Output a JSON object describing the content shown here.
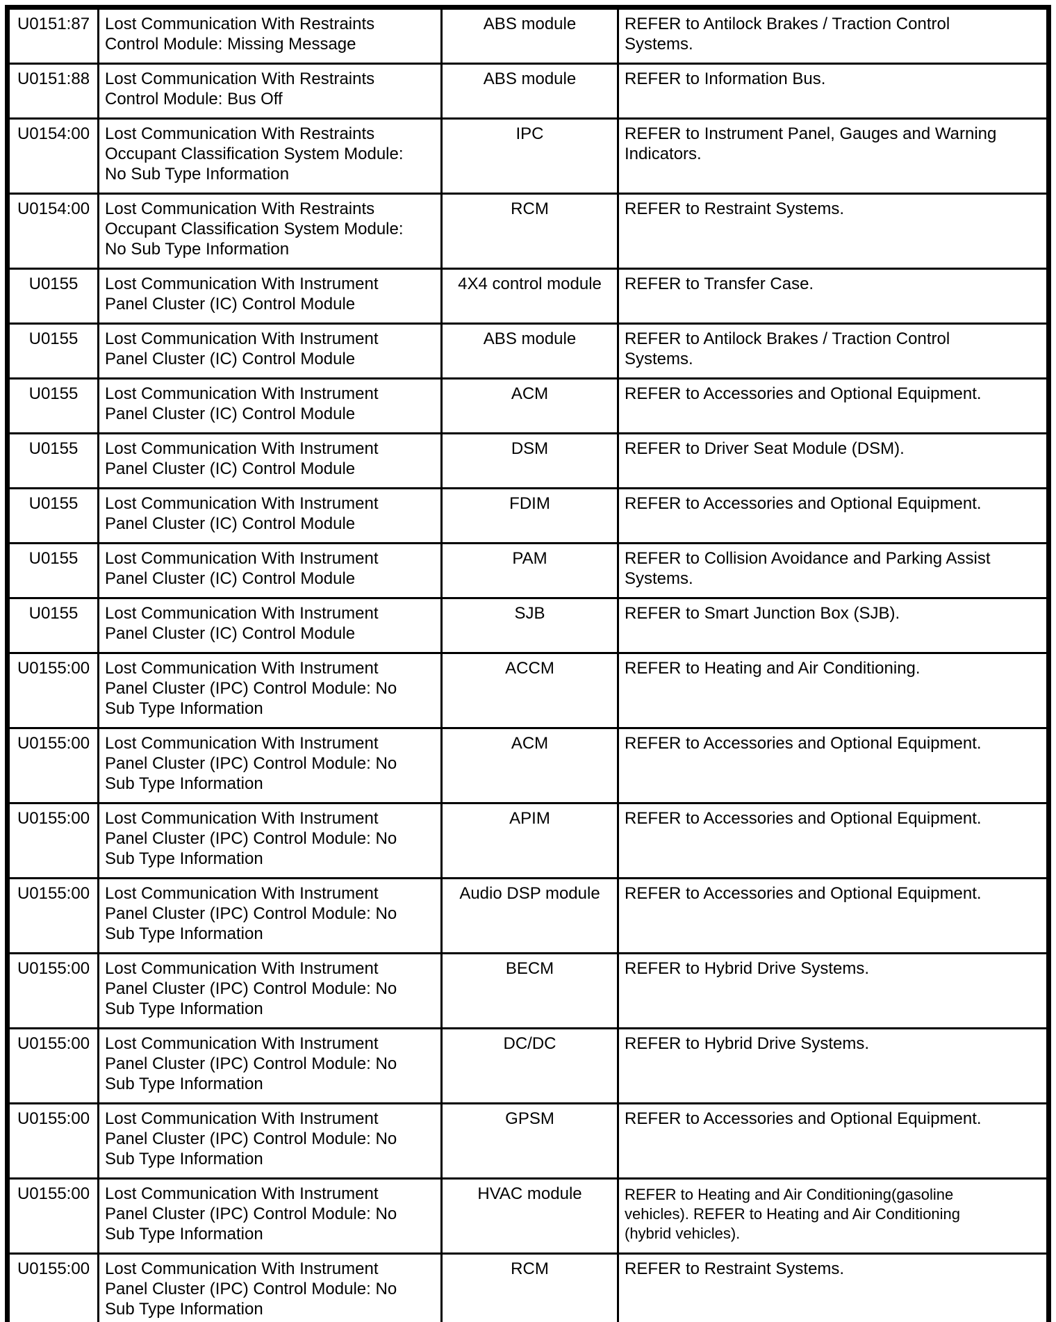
{
  "page": {
    "background_color": "#ffffff",
    "text_color": "#000000",
    "border_color": "#000000"
  },
  "table": {
    "column_keys": [
      "code",
      "description",
      "module",
      "action"
    ],
    "rows": [
      {
        "code": "U0151:87",
        "description": "Lost Communication With Restraints\nControl Module: Missing Message",
        "module": "ABS module",
        "action": "REFER to Antilock Brakes / Traction Control\nSystems."
      },
      {
        "code": "U0151:88",
        "description": "Lost Communication With Restraints\nControl Module: Bus Off",
        "module": "ABS module",
        "action": "REFER to Information Bus."
      },
      {
        "code": "U0154:00",
        "description": "Lost Communication With Restraints\nOccupant Classification System Module:\nNo Sub Type Information",
        "module": "IPC",
        "action": "REFER to Instrument Panel, Gauges and Warning\nIndicators."
      },
      {
        "code": "U0154:00",
        "description": "Lost Communication With Restraints\nOccupant Classification System Module:\nNo Sub Type Information",
        "module": "RCM",
        "action": "REFER to Restraint Systems."
      },
      {
        "code": "U0155",
        "description": "Lost Communication With Instrument\nPanel Cluster (IC) Control Module",
        "module": "4X4 control module",
        "action": "REFER to Transfer Case."
      },
      {
        "code": "U0155",
        "description": "Lost Communication With Instrument\nPanel Cluster (IC) Control Module",
        "module": "ABS module",
        "action": "REFER to Antilock Brakes / Traction Control\nSystems."
      },
      {
        "code": "U0155",
        "description": "Lost Communication With Instrument\nPanel Cluster (IC) Control Module",
        "module": "ACM",
        "action": "REFER to Accessories and Optional Equipment."
      },
      {
        "code": "U0155",
        "description": "Lost Communication With Instrument\nPanel Cluster (IC) Control Module",
        "module": "DSM",
        "action": "REFER to Driver Seat Module (DSM)."
      },
      {
        "code": "U0155",
        "description": "Lost Communication With Instrument\nPanel Cluster (IC) Control Module",
        "module": "FDIM",
        "action": "REFER to Accessories and Optional Equipment."
      },
      {
        "code": "U0155",
        "description": "Lost Communication With Instrument\nPanel Cluster (IC) Control Module",
        "module": "PAM",
        "action": "REFER to Collision Avoidance and Parking Assist\nSystems."
      },
      {
        "code": "U0155",
        "description": "Lost Communication With Instrument\nPanel Cluster (IC) Control Module",
        "module": "SJB",
        "action": "REFER to Smart Junction Box (SJB)."
      },
      {
        "code": "U0155:00",
        "description": "Lost Communication With Instrument\nPanel Cluster (IPC) Control Module: No\nSub Type Information",
        "module": "ACCM",
        "action": "REFER to Heating and Air Conditioning."
      },
      {
        "code": "U0155:00",
        "description": "Lost Communication With Instrument\nPanel Cluster (IPC) Control Module: No\nSub Type Information",
        "module": "ACM",
        "action": "REFER to Accessories and Optional Equipment."
      },
      {
        "code": "U0155:00",
        "description": "Lost Communication With Instrument\nPanel Cluster (IPC) Control Module: No\nSub Type Information",
        "module": "APIM",
        "action": "REFER to Accessories and Optional Equipment."
      },
      {
        "code": "U0155:00",
        "description": "Lost Communication With Instrument\nPanel Cluster (IPC) Control Module: No\nSub Type Information",
        "module": "Audio DSP module",
        "action": "REFER to Accessories and Optional Equipment."
      },
      {
        "code": "U0155:00",
        "description": "Lost Communication With Instrument\nPanel Cluster (IPC) Control Module: No\nSub Type Information",
        "module": "BECM",
        "action": "REFER to Hybrid Drive Systems."
      },
      {
        "code": "U0155:00",
        "description": "Lost Communication With Instrument\nPanel Cluster (IPC) Control Module: No\nSub Type Information",
        "module": "DC/DC",
        "action": "REFER to Hybrid Drive Systems."
      },
      {
        "code": "U0155:00",
        "description": "Lost Communication With Instrument\nPanel Cluster (IPC) Control Module: No\nSub Type Information",
        "module": "GPSM",
        "action": "REFER to Accessories and Optional Equipment."
      },
      {
        "code": "U0155:00",
        "description": "Lost Communication With Instrument\nPanel Cluster (IPC) Control Module: No\nSub Type Information",
        "module": "HVAC module",
        "action": "REFER to Heating and Air Conditioning(gasoline\nvehicles). REFER to Heating and Air Conditioning\n(hybrid vehicles)."
      },
      {
        "code": "U0155:00",
        "description": "Lost Communication With Instrument\nPanel Cluster (IPC) Control Module: No\nSub Type Information",
        "module": "RCM",
        "action": "REFER to Restraint Systems."
      }
    ]
  }
}
